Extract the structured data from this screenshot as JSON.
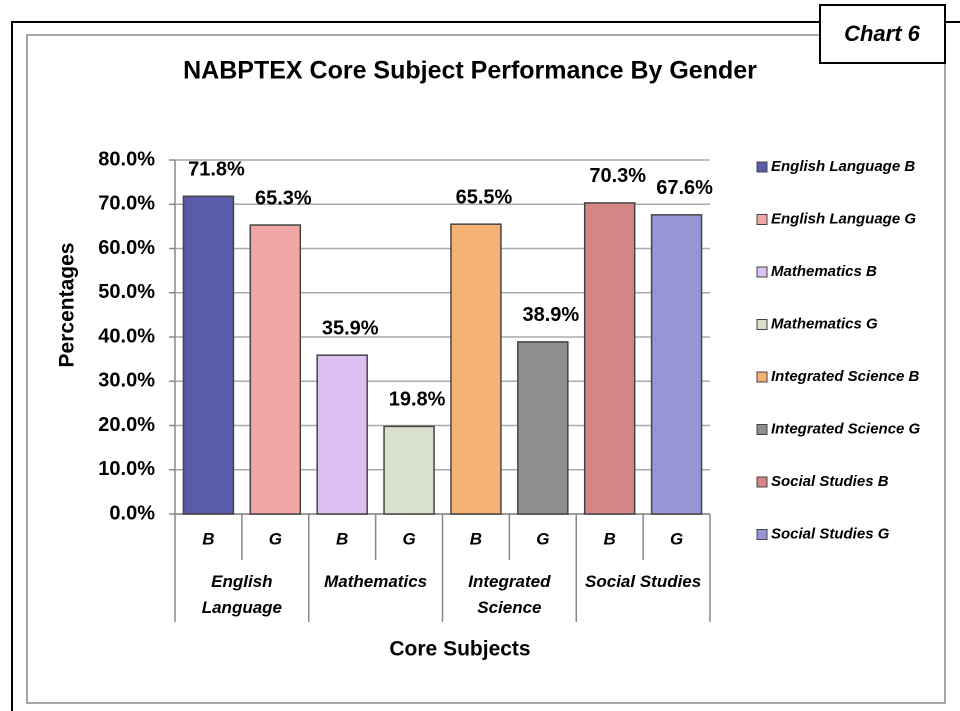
{
  "chart_data": {
    "type": "bar",
    "title": "NABPTEX Core Subject Performance By Gender",
    "badge": "Chart 6",
    "x_label": "Core Subjects",
    "y_label": "Percentages",
    "groups": [
      {
        "name": "English Language",
        "categories": [
          "B",
          "G"
        ]
      },
      {
        "name": "Mathematics",
        "categories": [
          "B",
          "G"
        ]
      },
      {
        "name": "Integrated Science",
        "categories": [
          "B",
          "G"
        ]
      },
      {
        "name": "Social Studies",
        "categories": [
          "B",
          "G"
        ]
      }
    ],
    "series": [
      {
        "name": "English Language B",
        "color": "#5b5bab",
        "value": 71.8,
        "value_label": "71.8%"
      },
      {
        "name": "English Language G",
        "color": "#f2a6a6",
        "value": 65.3,
        "value_label": "65.3%"
      },
      {
        "name": "Mathematics B",
        "color": "#dcc0f2",
        "value": 35.9,
        "value_label": "35.9%"
      },
      {
        "name": "Mathematics G",
        "color": "#d9e0cc",
        "value": 19.8,
        "value_label": "19.8%"
      },
      {
        "name": "Integrated Science B",
        "color": "#f5b274",
        "value": 65.5,
        "value_label": "65.5%"
      },
      {
        "name": "Integrated Science G",
        "color": "#8e8e8e",
        "value": 38.9,
        "value_label": "38.9%"
      },
      {
        "name": "Social Studies B",
        "color": "#d48585",
        "value": 70.3,
        "value_label": "70.3%"
      },
      {
        "name": "Social Studies G",
        "color": "#9696d6",
        "value": 67.6,
        "value_label": "67.6%"
      }
    ],
    "ylim": [
      0,
      80
    ],
    "yticks": [
      {
        "value": 0,
        "label": "0.0%"
      },
      {
        "value": 10,
        "label": "10.0%"
      },
      {
        "value": 20,
        "label": "20.0%"
      },
      {
        "value": 30,
        "label": "30.0%"
      },
      {
        "value": 40,
        "label": "40.0%"
      },
      {
        "value": 50,
        "label": "50.0%"
      },
      {
        "value": 60,
        "label": "60.0%"
      },
      {
        "value": 70,
        "label": "70.0%"
      },
      {
        "value": 80,
        "label": "80.0%"
      }
    ],
    "grid": true,
    "legend": "right"
  }
}
